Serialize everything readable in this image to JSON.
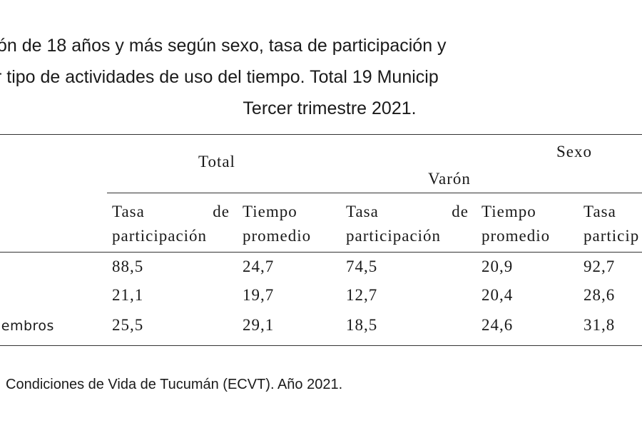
{
  "title": {
    "lines": [
      "ón de 18 años y más según sexo, tasa de participación y",
      "r tipo de actividades de uso del tiempo. Total 19 Municip",
      "Tercer trimestre 2021."
    ]
  },
  "table": {
    "group_headers": {
      "total": "Total",
      "sexo": "Sexo",
      "varon": "Varón"
    },
    "columns": [
      {
        "line1a": "Tasa",
        "line1b": "de",
        "line2": "participación"
      },
      {
        "line1": "Tiempo",
        "line2": "promedio"
      },
      {
        "line1a": "Tasa",
        "line1b": "de",
        "line2": "participación"
      },
      {
        "line1": "Tiempo",
        "line2": "promedio"
      },
      {
        "line1": "Tasa",
        "line2": "particip"
      }
    ],
    "rows": [
      {
        "values": [
          "88,5",
          "24,7",
          "74,5",
          "20,9",
          "92,7"
        ]
      },
      {
        "values": [
          "21,1",
          "19,7",
          "12,7",
          "20,4",
          "28,6"
        ]
      },
      {
        "label": "iembros",
        "values": [
          "25,5",
          "29,1",
          "18,5",
          "24,6",
          "31,8"
        ]
      }
    ]
  },
  "footer": "Condiciones de Vida de Tucumán (ECVT). Año 2021."
}
